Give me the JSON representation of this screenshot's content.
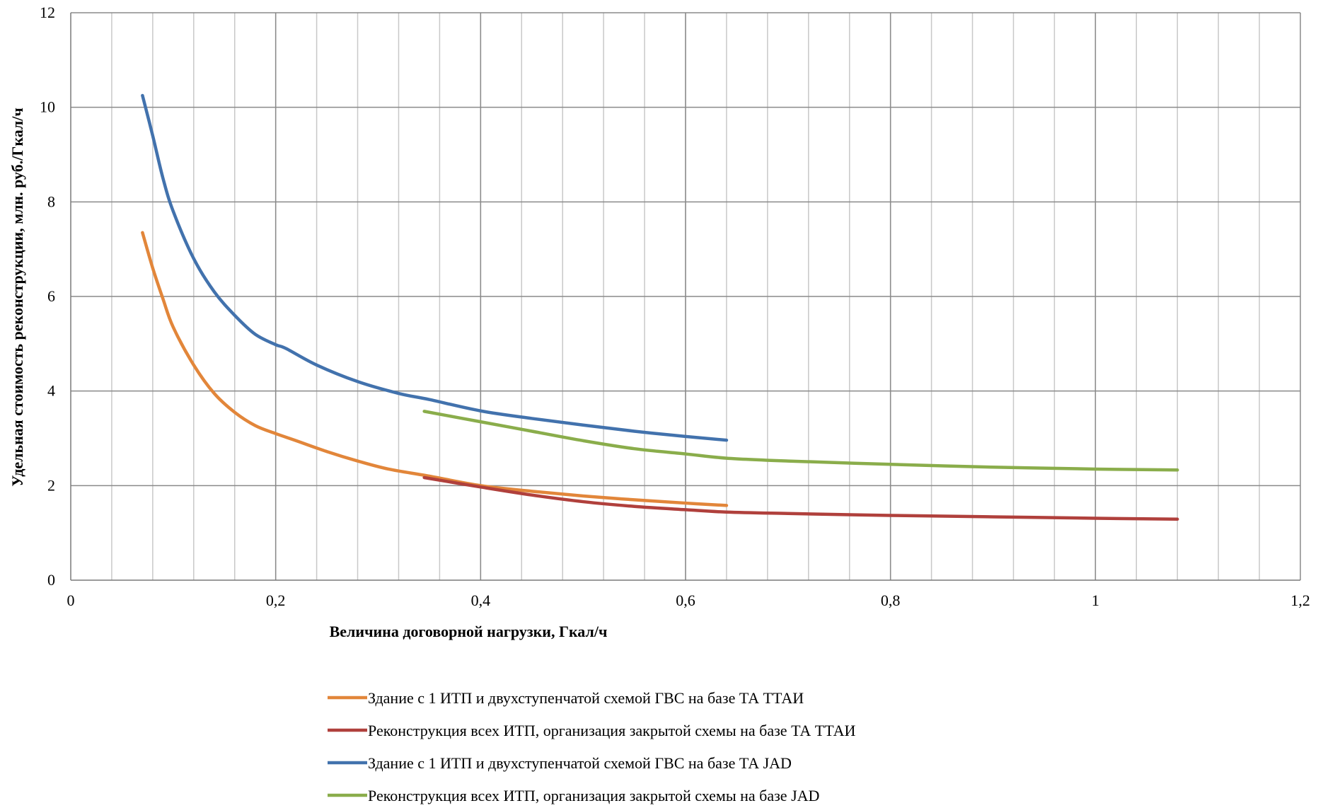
{
  "chart_data": {
    "type": "line",
    "xlabel": "Величина договорной нагрузки, Гкал/ч",
    "ylabel": "Удельная стоимость реконструкции, млн. руб./Гкал/ч",
    "xlim": [
      0,
      1.2
    ],
    "ylim": [
      0,
      12
    ],
    "x_ticks": [
      0,
      0.2,
      0.4,
      0.6,
      0.8,
      1,
      1.2
    ],
    "x_tick_labels": [
      "0",
      "0,2",
      "0,4",
      "0,6",
      "0,8",
      "1",
      "1,2"
    ],
    "y_ticks": [
      0,
      2,
      4,
      6,
      8,
      10,
      12
    ],
    "y_tick_labels": [
      "0",
      "2",
      "4",
      "6",
      "8",
      "10",
      "12"
    ],
    "x_minor_step": 0.04,
    "grid": true,
    "legend_position": "bottom",
    "series": [
      {
        "name": "Здание с 1 ИТП и двухступенчатой схемой ГВС на базе ТА ТТАИ",
        "color": "#E2863A",
        "x": [
          0.07,
          0.08,
          0.09,
          0.1,
          0.12,
          0.14,
          0.16,
          0.18,
          0.2,
          0.22,
          0.25,
          0.28,
          0.31,
          0.35,
          0.4,
          0.45,
          0.5,
          0.55,
          0.6,
          0.64
        ],
        "y": [
          7.35,
          6.6,
          5.95,
          5.35,
          4.55,
          3.95,
          3.55,
          3.27,
          3.1,
          2.95,
          2.72,
          2.52,
          2.35,
          2.2,
          2.0,
          1.88,
          1.78,
          1.7,
          1.63,
          1.58
        ]
      },
      {
        "name": "Реконструкция всех ИТП, организация закрытой схемы на базе ТА ТТАИ",
        "color": "#B0403C",
        "x": [
          0.345,
          0.4,
          0.45,
          0.5,
          0.55,
          0.6,
          0.64,
          0.7,
          0.8,
          0.9,
          1.0,
          1.08
        ],
        "y": [
          2.17,
          1.97,
          1.8,
          1.66,
          1.56,
          1.49,
          1.44,
          1.41,
          1.37,
          1.34,
          1.31,
          1.29
        ]
      },
      {
        "name": "Здание с 1 ИТП и двухступенчатой схемой ГВС на базе ТА JAD",
        "color": "#4272AD",
        "x": [
          0.07,
          0.08,
          0.09,
          0.1,
          0.12,
          0.14,
          0.16,
          0.18,
          0.2,
          0.21,
          0.24,
          0.28,
          0.32,
          0.35,
          0.4,
          0.45,
          0.5,
          0.55,
          0.6,
          0.64
        ],
        "y": [
          10.25,
          9.4,
          8.5,
          7.8,
          6.8,
          6.1,
          5.6,
          5.2,
          4.98,
          4.9,
          4.55,
          4.2,
          3.95,
          3.82,
          3.58,
          3.42,
          3.28,
          3.15,
          3.04,
          2.96
        ]
      },
      {
        "name": "Реконструкция всех ИТП, организация закрытой схемы на базе JAD",
        "color": "#8AAD4B",
        "x": [
          0.345,
          0.4,
          0.45,
          0.5,
          0.55,
          0.6,
          0.64,
          0.7,
          0.8,
          0.9,
          1.0,
          1.08
        ],
        "y": [
          3.57,
          3.35,
          3.15,
          2.95,
          2.78,
          2.67,
          2.58,
          2.52,
          2.45,
          2.39,
          2.35,
          2.33
        ]
      }
    ]
  }
}
